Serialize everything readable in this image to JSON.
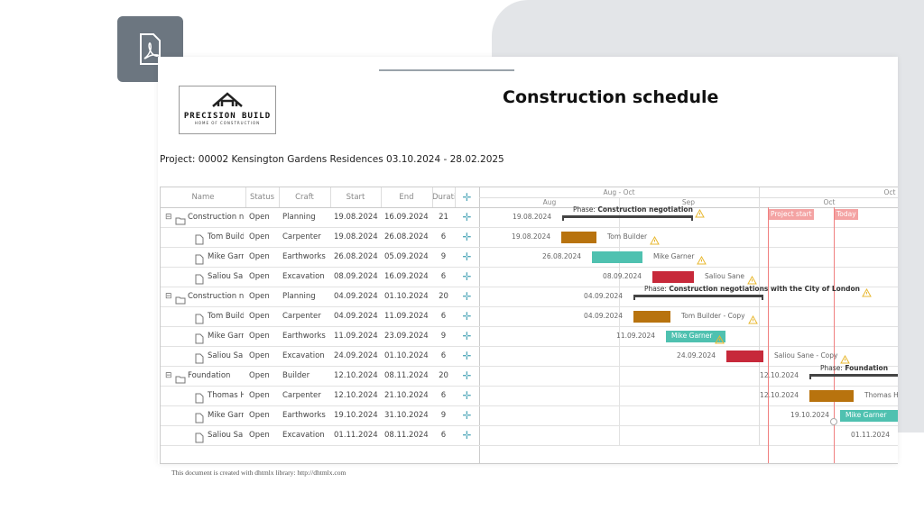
{
  "logo": {
    "name": "PRECISION BUILD",
    "tagline": "HOME OF CONSTRUCTION"
  },
  "title": "Construction schedule",
  "project": "Project: 00002 Kensington Gardens Residences 03.10.2024 - 28.02.2025",
  "grid": {
    "columns": [
      "Name",
      "Status",
      "Craft",
      "Start",
      "End",
      "Duration"
    ],
    "rows": [
      {
        "kind": "folder",
        "name": "Construction negotiation",
        "status": "Open",
        "craft": "Planning",
        "start": "19.08.2024",
        "end": "16.09.2024",
        "duration": 21
      },
      {
        "kind": "file",
        "name": "Tom Builder",
        "status": "Open",
        "craft": "Carpenter",
        "start": "19.08.2024",
        "end": "26.08.2024",
        "duration": 6
      },
      {
        "kind": "file",
        "name": "Mike Garner",
        "status": "Open",
        "craft": "Earthworks",
        "start": "26.08.2024",
        "end": "05.09.2024",
        "duration": 9
      },
      {
        "kind": "file",
        "name": "Saliou Sane",
        "status": "Open",
        "craft": "Excavation",
        "start": "08.09.2024",
        "end": "16.09.2024",
        "duration": 6
      },
      {
        "kind": "folder",
        "name": "Construction negotiations with the City of London",
        "status": "Open",
        "craft": "Planning",
        "start": "04.09.2024",
        "end": "01.10.2024",
        "duration": 20
      },
      {
        "kind": "file",
        "name": "Tom Builder - Copy",
        "status": "Open",
        "craft": "Carpenter",
        "start": "04.09.2024",
        "end": "11.09.2024",
        "duration": 6
      },
      {
        "kind": "file",
        "name": "Mike Garner",
        "status": "Open",
        "craft": "Earthworks",
        "start": "11.09.2024",
        "end": "23.09.2024",
        "duration": 9
      },
      {
        "kind": "file",
        "name": "Saliou Sane - Copy",
        "status": "Open",
        "craft": "Excavation",
        "start": "24.09.2024",
        "end": "01.10.2024",
        "duration": 6
      },
      {
        "kind": "folder",
        "name": "Foundation",
        "status": "Open",
        "craft": "Builder",
        "start": "12.10.2024",
        "end": "08.11.2024",
        "duration": 20
      },
      {
        "kind": "file",
        "name": "Thomas Hatch",
        "status": "Open",
        "craft": "Carpenter",
        "start": "12.10.2024",
        "end": "21.10.2024",
        "duration": 6
      },
      {
        "kind": "file",
        "name": "Mike Garner",
        "status": "Open",
        "craft": "Earthworks",
        "start": "19.10.2024",
        "end": "31.10.2024",
        "duration": 9
      },
      {
        "kind": "file",
        "name": "Saliou Sane - Copy",
        "status": "Open",
        "craft": "Excavation",
        "start": "01.11.2024",
        "end": "08.11.2024",
        "duration": 6
      }
    ]
  },
  "timeline": {
    "scale_top": [
      "Aug - Oct",
      "Oct"
    ],
    "scale_bottom": [
      "Aug",
      "Sep",
      "Oct"
    ],
    "markers": [
      "Project start",
      "Today"
    ],
    "bars": [
      {
        "date": "19.08.2024",
        "prefix": "Phase:",
        "text": "Construction negotiation",
        "warning": true
      },
      {
        "date": "19.08.2024",
        "text": "Tom Builder",
        "color": "#b8730e",
        "warning": true
      },
      {
        "date": "26.08.2024",
        "text": "Mike Garner",
        "color": "#4fc1b0",
        "warning": true
      },
      {
        "date": "08.09.2024",
        "text": "Saliou Sane",
        "color": "#c7293a",
        "warning": true
      },
      {
        "date": "04.09.2024",
        "prefix": "Phase:",
        "text": "Construction negotiations with the City of London",
        "warning": true
      },
      {
        "date": "04.09.2024",
        "text": "Tom Builder - Copy",
        "color": "#b8730e",
        "warning": true
      },
      {
        "date": "11.09.2024",
        "text": "Mike Garner",
        "color": "#4fc1b0",
        "warning": true
      },
      {
        "date": "24.09.2024",
        "text": "Saliou Sane - Copy",
        "color": "#c7293a",
        "warning": true
      },
      {
        "date": "12.10.2024",
        "prefix": "Phase:",
        "text": "Foundation",
        "warning": false
      },
      {
        "date": "12.10.2024",
        "text": "Thomas Hatch",
        "color": "#b8730e",
        "warning": false
      },
      {
        "date": "19.10.2024",
        "text": "Mike Garner",
        "color": "#4fc1b0",
        "warning": false
      },
      {
        "date": "01.11.2024",
        "warning": false
      }
    ]
  },
  "footer": "This document is created with dhtmlx library: http://dhtmlx.com"
}
